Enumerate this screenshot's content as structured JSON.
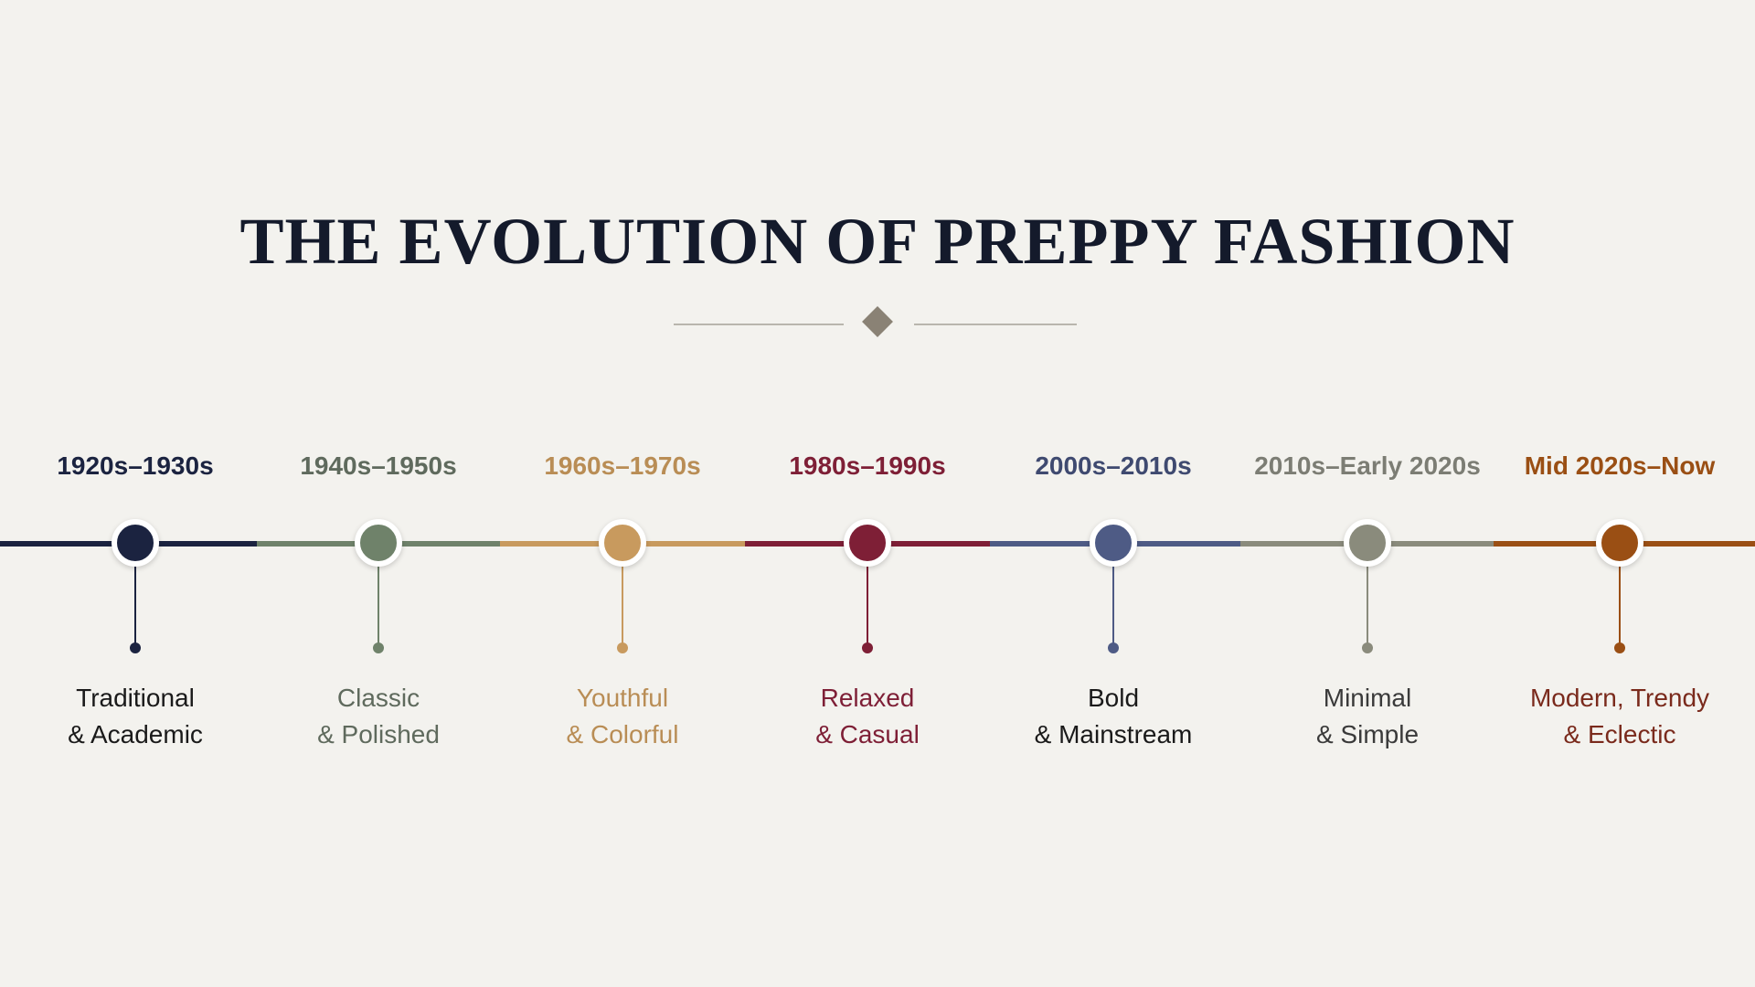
{
  "title": "THE EVOLUTION OF PREPPY FASHION",
  "timeline": [
    {
      "era": "1920s–1930s",
      "line1": "Traditional",
      "line2": "& Academic",
      "color": "#1b2340",
      "text_color": "#1b2340",
      "desc_color": "#1a1a1a"
    },
    {
      "era": "1940s–1950s",
      "line1": "Classic",
      "line2": "& Polished",
      "color": "#6f826a",
      "text_color": "#5f6a5d",
      "desc_color": "#5f6a5d"
    },
    {
      "era": "1960s–1970s",
      "line1": "Youthful",
      "line2": "& Colorful",
      "color": "#c89a5e",
      "text_color": "#b98d55",
      "desc_color": "#b98d55"
    },
    {
      "era": "1980s–1990s",
      "line1": "Relaxed",
      "line2": "& Casual",
      "color": "#7e1f36",
      "text_color": "#7e1f36",
      "desc_color": "#7e1f36"
    },
    {
      "era": "2000s–2010s",
      "line1": "Bold",
      "line2": "& Mainstream",
      "color": "#4e5b85",
      "text_color": "#3f4a70",
      "desc_color": "#1a1a1a"
    },
    {
      "era": "2010s–Early 2020s",
      "line1": "Minimal",
      "line2": "& Simple",
      "color": "#8a8b7c",
      "text_color": "#7c7d74",
      "desc_color": "#3a3a3a"
    },
    {
      "era": "Mid 2020s–Now",
      "line1": "Modern, Trendy",
      "line2": "& Eclectic",
      "color": "#9a4f14",
      "text_color": "#9a4f14",
      "desc_color": "#7a2a1c"
    }
  ]
}
